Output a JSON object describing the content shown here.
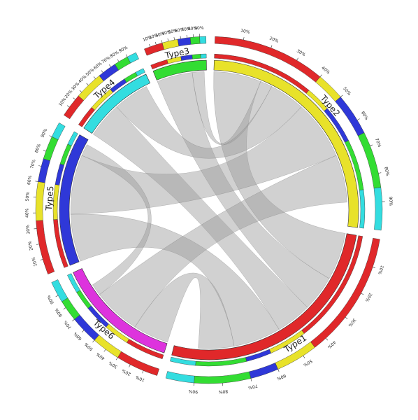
{
  "chart_data": {
    "type": "chord",
    "sectors": [
      {
        "name": "Type2",
        "color": "#e8e22a",
        "value": 1900,
        "parts": [
          40,
          10,
          15,
          20,
          15
        ]
      },
      {
        "name": "Type1",
        "color": "#e0282a",
        "value": 1900,
        "parts": [
          45,
          15,
          10,
          20,
          10
        ]
      },
      {
        "name": "Type6",
        "color": "#dd33dd",
        "value": 960,
        "parts": [
          30,
          20,
          20,
          15,
          15
        ]
      },
      {
        "name": "Type5",
        "color": "#2f38d8",
        "value": 1040,
        "parts": [
          35,
          25,
          15,
          15,
          10
        ]
      },
      {
        "name": "Type4",
        "color": "#33dde0",
        "value": 640,
        "parts": [
          25,
          30,
          20,
          15,
          10
        ]
      },
      {
        "name": "Type3",
        "color": "#33dd33",
        "value": 420,
        "parts": [
          30,
          25,
          20,
          15,
          10
        ]
      }
    ],
    "part_colors": [
      "#e0282a",
      "#e8e22a",
      "#2f38d8",
      "#33dd33",
      "#33dde0"
    ],
    "links": [
      {
        "source": 1,
        "target": 0,
        "value": 400
      },
      {
        "source": 1,
        "target": 5,
        "value": 300
      },
      {
        "source": 1,
        "target": 4,
        "value": 300
      },
      {
        "source": 1,
        "target": 3,
        "value": 400
      },
      {
        "source": 1,
        "target": 2,
        "value": 300
      },
      {
        "source": 0,
        "target": 5,
        "value": 100
      },
      {
        "source": 0,
        "target": 4,
        "value": 300
      },
      {
        "source": 0,
        "target": 3,
        "value": 500
      },
      {
        "source": 0,
        "target": 2,
        "value": 400
      },
      {
        "source": 3,
        "target": 2,
        "value": 100
      }
    ],
    "link_color": "#9a9a9a",
    "percent_ticks": [
      {
        "value": 10,
        "label": "10%"
      },
      {
        "value": 20,
        "label": "20%"
      },
      {
        "value": 30,
        "label": "30%"
      },
      {
        "value": 40,
        "label": "40%"
      },
      {
        "value": 50,
        "label": "50%"
      },
      {
        "value": 60,
        "label": "60%"
      },
      {
        "value": 70,
        "label": "70%"
      },
      {
        "value": 80,
        "label": "80%"
      },
      {
        "value": 90,
        "label": "90%"
      }
    ]
  }
}
